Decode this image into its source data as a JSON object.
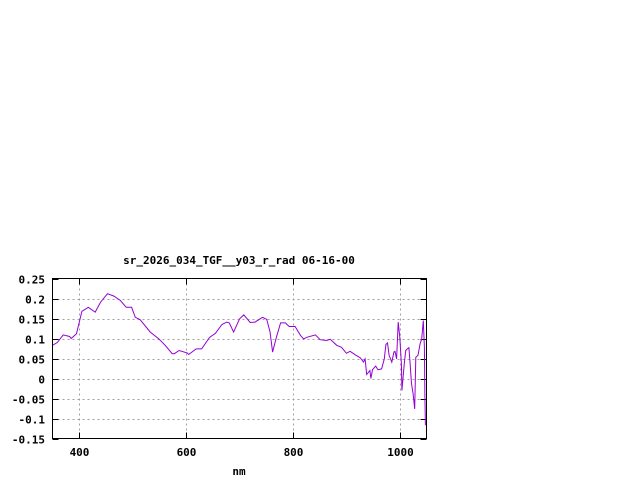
{
  "chart_data": {
    "type": "line",
    "title": "sr_2026_034_TGF__y03_r_rad 06-16-00",
    "xlabel": "nm",
    "ylabel": "",
    "xlim": [
      350,
      1050
    ],
    "ylim": [
      -0.15,
      0.25
    ],
    "xticks": [
      400,
      600,
      800,
      1000
    ],
    "xtick_labels": [
      "400",
      "600",
      "800",
      "1000"
    ],
    "yticks": [
      -0.15,
      -0.1,
      -0.05,
      0,
      0.05,
      0.1,
      0.15,
      0.2,
      0.25
    ],
    "ytick_labels": [
      "-0.15",
      "-0.1",
      "-0.05",
      "0",
      "0.05",
      "0.1",
      "0.15",
      "0.2",
      "0.25"
    ],
    "grid": true,
    "line_color": "#9400d3",
    "series": [
      {
        "x": [
          350,
          359,
          370,
          382,
          385,
          395,
          405,
          417,
          430,
          440,
          453,
          465,
          477,
          488,
          498,
          505,
          514,
          533,
          549,
          561,
          574,
          578,
          587,
          602,
          605,
          619,
          629,
          644,
          655,
          667,
          676,
          681,
          689,
          700,
          708,
          720,
          729,
          743,
          751,
          757,
          762,
          769,
          777,
          786,
          793,
          804,
          814,
          820,
          826,
          842,
          851,
          863,
          870,
          882,
          891,
          900,
          907,
          918,
          926,
          932,
          935,
          938,
          944,
          946,
          949,
          955,
          959,
          966,
          971,
          974,
          977,
          980,
          985,
          989,
          991,
          994,
          997,
          1000,
          1003,
          1004,
          1008,
          1011,
          1014,
          1017,
          1019,
          1022,
          1025,
          1028,
          1030,
          1034,
          1038,
          1041,
          1044,
          1046,
          1047,
          1048
        ],
        "y": [
          0.083,
          0.09,
          0.109,
          0.105,
          0.1,
          0.112,
          0.168,
          0.178,
          0.166,
          0.191,
          0.212,
          0.206,
          0.195,
          0.178,
          0.178,
          0.153,
          0.147,
          0.116,
          0.099,
          0.083,
          0.062,
          0.062,
          0.07,
          0.064,
          0.06,
          0.074,
          0.074,
          0.103,
          0.113,
          0.135,
          0.141,
          0.139,
          0.116,
          0.149,
          0.159,
          0.14,
          0.141,
          0.153,
          0.148,
          0.117,
          0.066,
          0.103,
          0.139,
          0.139,
          0.13,
          0.13,
          0.108,
          0.099,
          0.103,
          0.109,
          0.097,
          0.095,
          0.098,
          0.083,
          0.078,
          0.063,
          0.068,
          0.058,
          0.052,
          0.041,
          0.049,
          0.01,
          0.02,
          0.0,
          0.022,
          0.031,
          0.022,
          0.024,
          0.049,
          0.085,
          0.089,
          0.058,
          0.041,
          0.066,
          0.068,
          0.049,
          0.141,
          0.103,
          0.037,
          -0.03,
          0.032,
          0.07,
          0.074,
          0.077,
          0.045,
          -0.013,
          -0.038,
          -0.076,
          0.053,
          0.058,
          0.087,
          0.099,
          0.145,
          0.078,
          -0.047,
          -0.117
        ]
      }
    ]
  }
}
